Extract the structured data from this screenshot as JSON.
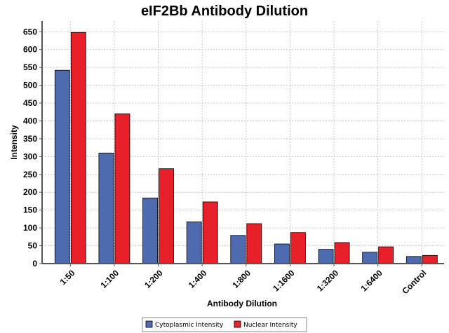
{
  "chart_data": {
    "type": "bar",
    "title": "eIF2Bb Antibody Dilution",
    "xlabel": "Antibody Dilution",
    "ylabel": "Intensity",
    "ylim": [
      0,
      680
    ],
    "yticks": [
      0,
      50,
      100,
      150,
      200,
      250,
      300,
      350,
      400,
      450,
      500,
      550,
      600,
      650
    ],
    "grid": true,
    "legend_position": "bottom",
    "categories": [
      "1:50",
      "1:100",
      "1:200",
      "1:400",
      "1:800",
      "1:1600",
      "1:3200",
      "1:6400",
      "Control"
    ],
    "series": [
      {
        "name": "Cytoplasmic Intensity",
        "color": "#4f6bb0",
        "values": [
          542,
          310,
          184,
          117,
          79,
          55,
          40,
          32,
          20
        ]
      },
      {
        "name": "Nuclear Intensity",
        "color": "#e8202a",
        "values": [
          648,
          420,
          266,
          173,
          112,
          87,
          59,
          47,
          23
        ]
      }
    ]
  }
}
